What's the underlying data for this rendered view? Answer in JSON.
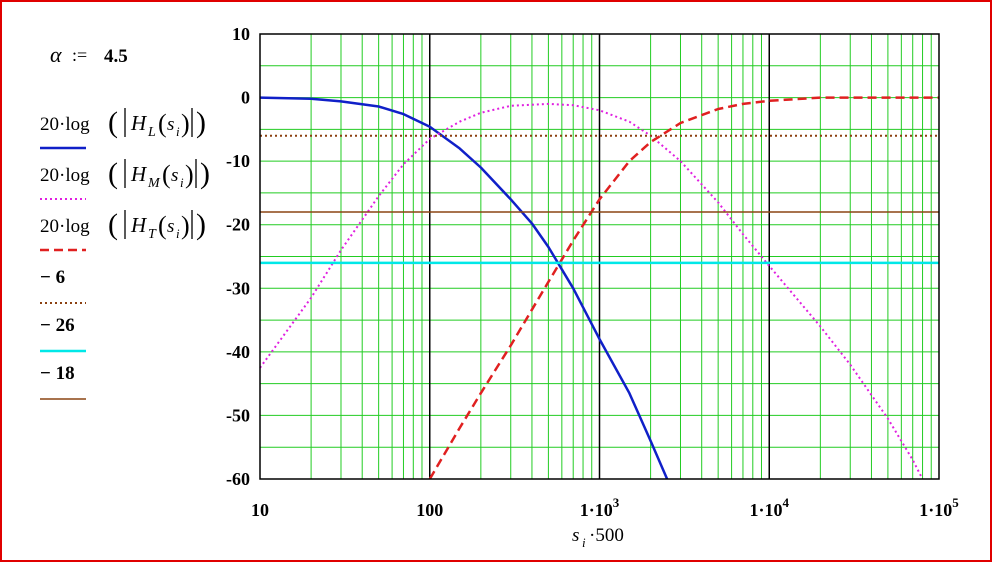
{
  "alpha_definition": {
    "symbol": "α",
    "assign": ":=",
    "value": "4.5"
  },
  "chart_data": {
    "type": "line",
    "xscale": "log",
    "xlim": [
      10,
      100000
    ],
    "ylim": [
      -60,
      10
    ],
    "grid": true,
    "legend_placement": "left",
    "xlabel": {
      "base": "s",
      "sub": "i",
      "suffix": "·500"
    },
    "x_ticks": [
      {
        "value": 10,
        "label": "10",
        "sup": ""
      },
      {
        "value": 100,
        "label": "100",
        "sup": ""
      },
      {
        "value": 1000,
        "label": "1·10",
        "sup": "3"
      },
      {
        "value": 10000,
        "label": "1·10",
        "sup": "4"
      },
      {
        "value": 100000,
        "label": "1·10",
        "sup": "5"
      }
    ],
    "y_ticks": [
      10,
      0,
      -10,
      -20,
      -30,
      -40,
      -50,
      -60
    ],
    "colors": {
      "grid": "#22cc22",
      "decade": "#000000",
      "axis": "#000000",
      "frame": "#e00000"
    },
    "series": [
      {
        "legend": {
          "pre": "20·log",
          "fn": "H",
          "sub": "L",
          "arg": "s",
          "argsub": "i"
        },
        "color": "#1020c8",
        "dash": "solid",
        "width": 2.5,
        "points": [
          [
            10,
            0
          ],
          [
            20,
            -0.2
          ],
          [
            30,
            -0.6
          ],
          [
            50,
            -1.4
          ],
          [
            70,
            -2.6
          ],
          [
            100,
            -4.6
          ],
          [
            150,
            -8
          ],
          [
            200,
            -11
          ],
          [
            300,
            -16
          ],
          [
            400,
            -19.8
          ],
          [
            500,
            -23.5
          ],
          [
            700,
            -30
          ],
          [
            1000,
            -38
          ],
          [
            1500,
            -46.5
          ],
          [
            2000,
            -54
          ],
          [
            2500,
            -60
          ]
        ]
      },
      {
        "legend": {
          "pre": "20·log",
          "fn": "H",
          "sub": "M",
          "arg": "s",
          "argsub": "i"
        },
        "color": "#e020e0",
        "dash": "dotted",
        "width": 2,
        "points": [
          [
            10,
            -42.5
          ],
          [
            20,
            -31.5
          ],
          [
            30,
            -24
          ],
          [
            50,
            -15.5
          ],
          [
            70,
            -10.5
          ],
          [
            100,
            -6.5
          ],
          [
            150,
            -3.8
          ],
          [
            200,
            -2.4
          ],
          [
            300,
            -1.3
          ],
          [
            500,
            -1
          ],
          [
            700,
            -1.2
          ],
          [
            1000,
            -2
          ],
          [
            1500,
            -3.8
          ],
          [
            2000,
            -6
          ],
          [
            3000,
            -10
          ],
          [
            5000,
            -16.5
          ],
          [
            7000,
            -21.5
          ],
          [
            10000,
            -26.5
          ],
          [
            20000,
            -36
          ],
          [
            30000,
            -42
          ],
          [
            50000,
            -50.5
          ],
          [
            70000,
            -57
          ],
          [
            80000,
            -60
          ]
        ]
      },
      {
        "legend": {
          "pre": "20·log",
          "fn": "H",
          "sub": "T",
          "arg": "s",
          "argsub": "i"
        },
        "color": "#e02020",
        "dash": "dashed",
        "width": 2.5,
        "points": [
          [
            100,
            -60
          ],
          [
            150,
            -52
          ],
          [
            200,
            -46.5
          ],
          [
            300,
            -39
          ],
          [
            500,
            -29
          ],
          [
            700,
            -22.5
          ],
          [
            1000,
            -16
          ],
          [
            1500,
            -10
          ],
          [
            2000,
            -7
          ],
          [
            3000,
            -4
          ],
          [
            5000,
            -1.8
          ],
          [
            7000,
            -1
          ],
          [
            10000,
            -0.5
          ],
          [
            20000,
            0
          ],
          [
            100000,
            0
          ]
        ]
      },
      {
        "legend": {
          "text": "− 6"
        },
        "color": "#8b4010",
        "dash": "dotted",
        "width": 2,
        "points": [
          [
            10,
            -6
          ],
          [
            100000,
            -6
          ]
        ]
      },
      {
        "legend": {
          "text": "− 26"
        },
        "color": "#00e8e8",
        "dash": "solid",
        "width": 2.5,
        "points": [
          [
            10,
            -26
          ],
          [
            100000,
            -26
          ]
        ]
      },
      {
        "legend": {
          "text": "− 18"
        },
        "color": "#8b4513",
        "dash": "solid",
        "width": 1.5,
        "points": [
          [
            10,
            -18
          ],
          [
            100000,
            -18
          ]
        ]
      }
    ]
  }
}
